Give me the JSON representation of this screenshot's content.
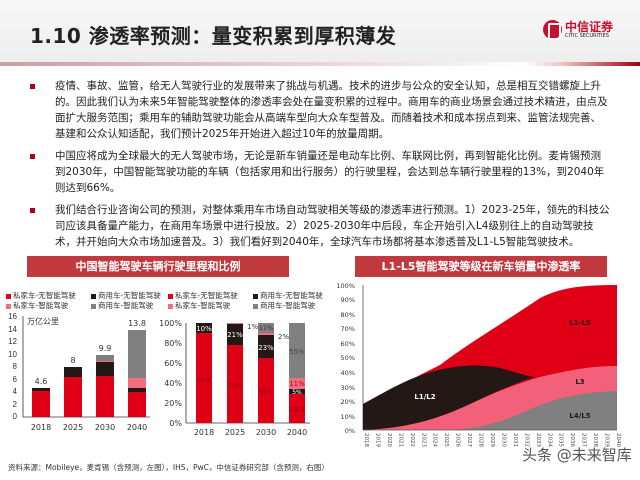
{
  "header": {
    "title": "1.10 渗透率预测：量变积累到厚积薄发",
    "logo_cn": "中信证券",
    "logo_en": "CITIC SECURITIES"
  },
  "bullets": [
    "疫情、事故、监管，给无人驾驶行业的发展带来了挑战与机遇。技术的进步与公众的安全认知，总是相互交错螺旋上升的。因此我们认为未来5年智能驾驶整体的渗透率会处在量变积累的过程中。商用车的商业场景会通过技术精进，由点及面扩大服务范围；乘用车的辅助驾驶功能会从高端车型向大众车型普及。而随着技术和成本拐点到来、监管法规完善、基建和公众认知适配，我们预计2025年开始进入超过10年的放量周期。",
    "中国应将成为全球最大的无人驾驶市场，无论是新车销量还是电动车比例、车联网比例，再到智能化比例。麦肯锡预测到2030年，中国智能驾驶功能的车辆（包括家用和出行服务）的行驶里程，会达到总车辆行驶里程的13%，到2040年则达到66%。",
    "我们结合行业咨询公司的预测，对整体乘用车市场自动驾驶相关等级的渗透率进行预测。1）2023-25年，领先的科技公司应该具备量产能力，在商用车场景中进行投放。2）2025-2030年中后段，车企开始引入L4级别往上的自动驾驶技术，并开始向大众市场加速普及。3）我们看好到2040年，全球汽车市场都将基本渗透普及L1-L5智能驾驶技术。"
  ],
  "left_panel": {
    "title": "中国智能驾驶车辆行驶里程和比例"
  },
  "right_panel": {
    "title": "L1-L5智能驾驶等级在新车销量中渗透率"
  },
  "legend": {
    "items": [
      {
        "label": "私家车-无智能驾驶",
        "color": "#e00016"
      },
      {
        "label": "商用车-无智能驾驶",
        "color": "#231815"
      },
      {
        "label": "私家车-智能驾驶",
        "color": "#f26e7e"
      },
      {
        "label": "商用车-智能驾驶",
        "color": "#808080"
      }
    ]
  },
  "source": "资料来源：Mobileye，麦肯锡（含预测，左图），IHS，PwC，中信证券研究部（含预测，右图）",
  "watermark": "头条 @未来智库",
  "chart_data": [
    {
      "type": "bar",
      "stacked": true,
      "title": "中国智能驾驶车辆行驶里程和比例",
      "ylabel": "万亿公里",
      "categories": [
        "2018",
        "2025",
        "2030",
        "2040"
      ],
      "ylim": [
        0,
        16
      ],
      "yticks": [
        0,
        2,
        4,
        6,
        8,
        10,
        12,
        14,
        16
      ],
      "totals": [
        4.6,
        8,
        9.9,
        13.8
      ],
      "total_labels": [
        "4.6",
        "8",
        "9.9",
        "13.8"
      ],
      "series": [
        {
          "name": "私家车-无智能驾驶",
          "color": "#e00016",
          "values": [
            4.2,
            6.3,
            6.5,
            4.0
          ]
        },
        {
          "name": "商用车-无智能驾驶",
          "color": "#231815",
          "values": [
            0.4,
            1.6,
            2.2,
            0.7
          ]
        },
        {
          "name": "私家车-智能驾驶",
          "color": "#f26e7e",
          "values": [
            0,
            0.1,
            0.2,
            1.5
          ]
        },
        {
          "name": "商用车-智能驾驶",
          "color": "#808080",
          "values": [
            0,
            0,
            1.0,
            7.6
          ]
        }
      ]
    },
    {
      "type": "bar",
      "stacked": true,
      "percent": true,
      "categories": [
        "2018",
        "2025",
        "2030",
        "2040"
      ],
      "ylim": [
        0,
        100
      ],
      "yticks": [
        "0%",
        "20%",
        "40%",
        "60%",
        "80%",
        "100%"
      ],
      "series": [
        {
          "name": "私家车-无智能驾驶",
          "color": "#e00016",
          "values": [
            90,
            78,
            65,
            29
          ]
        },
        {
          "name": "商用车-无智能驾驶",
          "color": "#231815",
          "values": [
            10,
            21,
            23,
            5
          ]
        },
        {
          "name": "私家车-智能驾驶",
          "color": "#f26e7e",
          "values": [
            0,
            1,
            2,
            11
          ]
        },
        {
          "name": "商用车-智能驾驶",
          "color": "#808080",
          "values": [
            0,
            0,
            11,
            55
          ]
        }
      ],
      "labels": {
        "2018": [
          "90%",
          "10%"
        ],
        "2025": [
          "78%",
          "21%",
          "1%"
        ],
        "2030": [
          "65%",
          "23%",
          "2%",
          "11%"
        ],
        "2040": [
          "29%",
          "5%",
          "11%",
          "55%"
        ]
      }
    },
    {
      "type": "area",
      "stacked": true,
      "title": "L1-L5智能驾驶等级在新车销量中渗透率",
      "x": [
        "2018",
        "2019",
        "2020",
        "2021",
        "2022",
        "2023",
        "2024",
        "2025",
        "2026",
        "2027",
        "2028",
        "2029",
        "2030",
        "2031",
        "2032",
        "2033",
        "2034",
        "2035",
        "2036",
        "2037",
        "2038",
        "2039",
        "2040"
      ],
      "ylim": [
        0,
        100
      ],
      "yticks": [
        "0%",
        "10%",
        "20%",
        "30%",
        "40%",
        "50%",
        "60%",
        "70%",
        "80%",
        "90%",
        "100%"
      ],
      "series": [
        {
          "name": "L4/L5",
          "color": "#808080",
          "values": [
            0,
            0,
            0,
            0,
            0,
            0,
            0.5,
            1,
            2,
            3,
            5,
            8,
            11,
            14,
            18,
            21,
            24,
            26,
            27.5,
            28.5,
            29,
            29.5,
            30
          ]
        },
        {
          "name": "L3",
          "color": "#f2607a",
          "values": [
            0,
            0,
            0.5,
            1,
            2,
            3,
            5,
            7,
            9,
            11,
            13,
            15,
            17,
            19,
            20,
            20,
            19,
            18,
            17,
            16,
            15.5,
            15,
            15
          ]
        },
        {
          "name": "L1/L2",
          "color": "#231815",
          "values": [
            18,
            23,
            28,
            32,
            35,
            37,
            36,
            34,
            31,
            27,
            23,
            18,
            13,
            5,
            0,
            0,
            0,
            0,
            0,
            0,
            0,
            0,
            0
          ]
        },
        {
          "name": "L1-L5",
          "color": "#e00016",
          "values": [
            0,
            1,
            1.5,
            2,
            3,
            4.5,
            7,
            10,
            13,
            16,
            19,
            22,
            25,
            29,
            36,
            41,
            47,
            52,
            54,
            55,
            55,
            55,
            55
          ]
        }
      ],
      "annotations": [
        "L1-L5",
        "L3",
        "L1/L2",
        "L4/L5"
      ]
    }
  ]
}
